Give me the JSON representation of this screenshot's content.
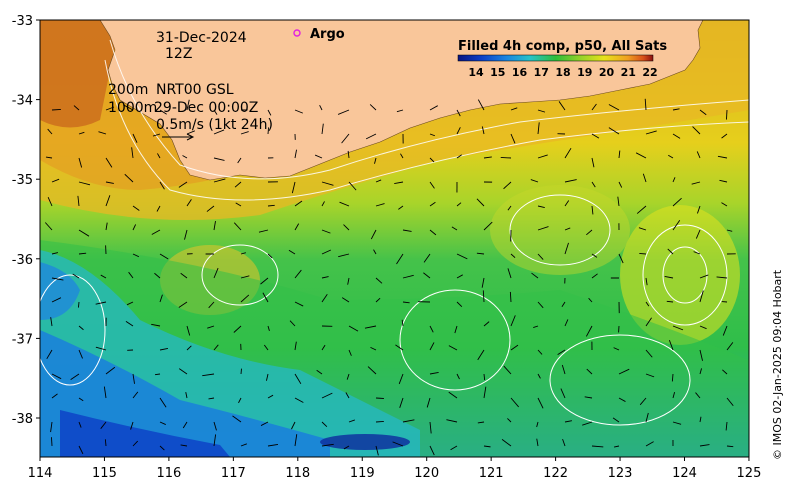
{
  "map": {
    "date": "31-Dec-2024",
    "hour": "12Z",
    "contours_line1": "200m",
    "contours_line2": "1000m",
    "product": "NRT00 GSL",
    "product_time": "29-Dec 00:00Z",
    "vector_scale": "0.5m/s (1kt 24h)",
    "argo_label": "Argo",
    "credit": "© IMOS 02-Jan-2025 09:04 Hobart"
  },
  "colorbar": {
    "title": "Filled 4h comp, p50, All Sats",
    "ticks": [
      "14",
      "15",
      "16",
      "17",
      "18",
      "19",
      "20",
      "21",
      "22"
    ],
    "colors": [
      "#0a1580",
      "#0b3fc7",
      "#1a86e0",
      "#27c3c8",
      "#2ebd3a",
      "#8fd12a",
      "#e8e21a",
      "#f0a020",
      "#d8501a",
      "#8a1010"
    ]
  },
  "x_axis": {
    "labels": [
      "114",
      "115",
      "116",
      "117",
      "118",
      "119",
      "120",
      "121",
      "122",
      "123",
      "124",
      "125"
    ]
  },
  "y_axis": {
    "labels": [
      "-33",
      "-34",
      "-35",
      "-36",
      "-37",
      "-38"
    ]
  },
  "colors": {
    "land": "#f9c69a",
    "warm_band": "#e8c02a",
    "mid_green": "#3cc04a",
    "cool_blue": "#1c7fd8"
  }
}
